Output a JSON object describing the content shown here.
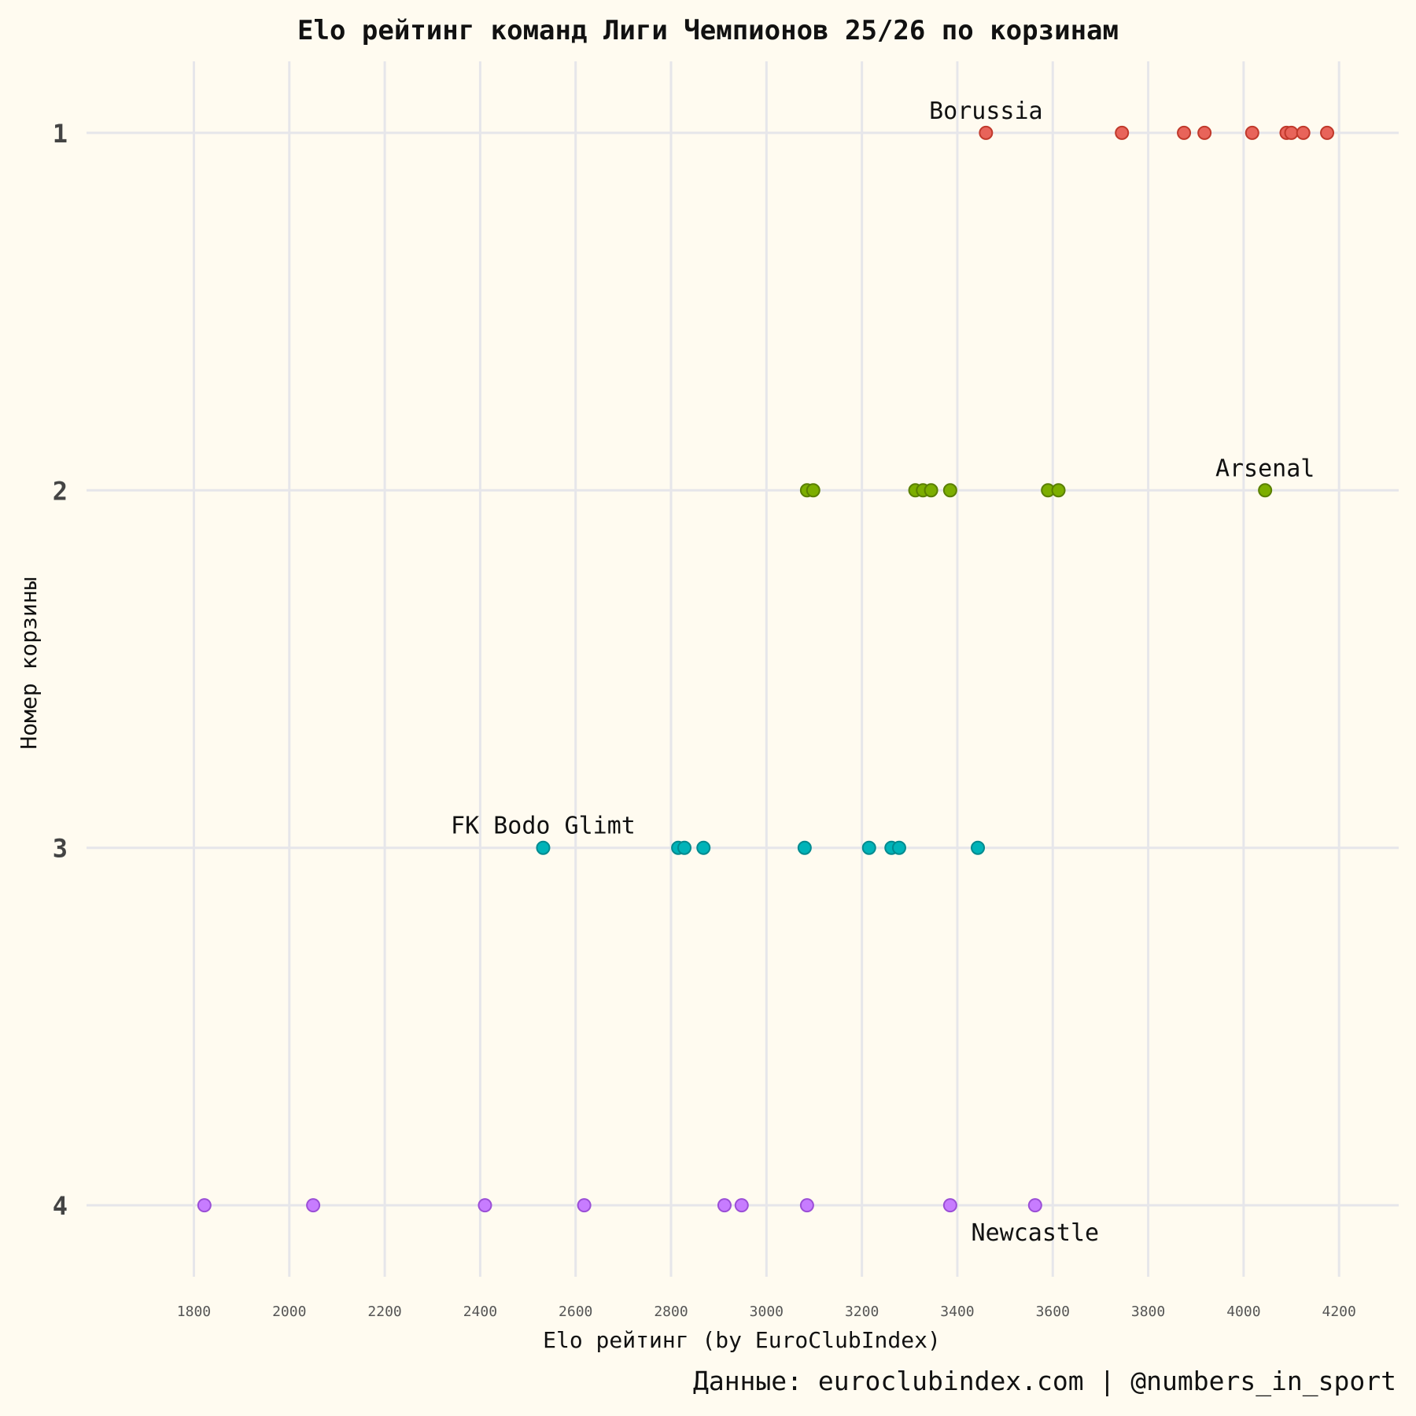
{
  "chart_data": {
    "type": "scatter",
    "title": "Elo рейтинг команд Лиги Чемпионов 25/26 по корзинам",
    "xlabel": "Elo рейтинг (by EuroClubIndex)",
    "ylabel": "Номер корзины",
    "caption": "Данные: euroclubindex.com | @numbers_in_sport",
    "xlim": [
      1575,
      4325
    ],
    "xticks": [
      1800,
      2000,
      2200,
      2400,
      2600,
      2800,
      3000,
      3200,
      3400,
      3600,
      3800,
      4000,
      4200
    ],
    "yticks": [
      1,
      2,
      3,
      4
    ],
    "ylim": [
      0.8,
      4.2
    ],
    "y_inverted": true,
    "grid": true,
    "legend": "none",
    "series": [
      {
        "pot": 1,
        "color": "#e8645a",
        "edge": "#c0392b",
        "values": [
          3460,
          3745,
          3875,
          3918,
          4018,
          4090,
          4100,
          4125,
          4175
        ]
      },
      {
        "pot": 2,
        "color": "#7cae00",
        "edge": "#5a7f00",
        "values": [
          3085,
          3098,
          3312,
          3328,
          3345,
          3385,
          3590,
          3612,
          4045
        ]
      },
      {
        "pot": 3,
        "color": "#00b3b8",
        "edge": "#008a8f",
        "values": [
          2532,
          2815,
          2828,
          2868,
          3080,
          3215,
          3262,
          3278,
          3443
        ]
      },
      {
        "pot": 4,
        "color": "#c77cff",
        "edge": "#9b4fd6",
        "values": [
          1822,
          2050,
          2410,
          2618,
          2912,
          2948,
          3085,
          3385,
          3563
        ]
      }
    ],
    "annotations": [
      {
        "text": "Borussia",
        "x": 3460,
        "pot": 1,
        "position": "above"
      },
      {
        "text": "Arsenal",
        "x": 4045,
        "pot": 2,
        "position": "above"
      },
      {
        "text": "FK Bodo Glimt",
        "x": 2532,
        "pot": 3,
        "position": "above"
      },
      {
        "text": "Newcastle",
        "x": 3563,
        "pot": 4,
        "position": "below"
      }
    ]
  }
}
